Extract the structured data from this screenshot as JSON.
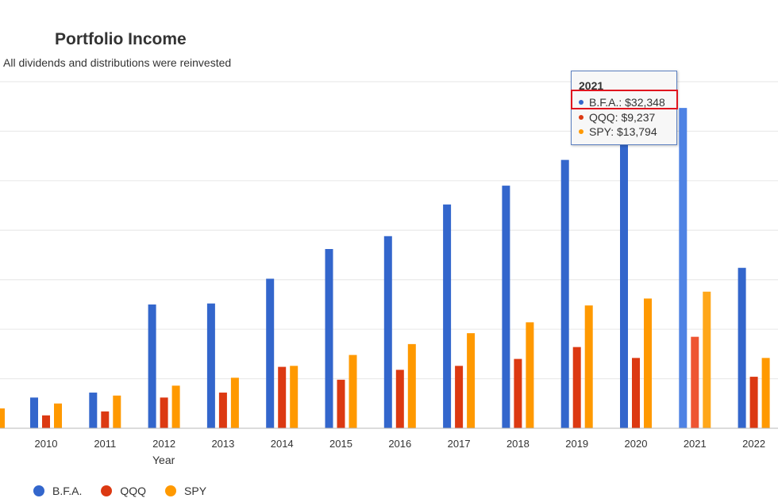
{
  "title": "Portfolio Income",
  "subtitle": "All dividends and distributions were reinvested",
  "chart_data": {
    "type": "bar",
    "title": "Portfolio Income",
    "subtitle": "All dividends and distributions were reinvested",
    "xlabel": "Year",
    "ylabel": "",
    "categories": [
      "2010",
      "2011",
      "2012",
      "2013",
      "2014",
      "2015",
      "2016",
      "2017",
      "2018",
      "2019",
      "2020",
      "2021",
      "2022"
    ],
    "series": [
      {
        "name": "B.F.A.",
        "color": "#3366cc",
        "values": [
          3100,
          3600,
          12500,
          12600,
          15100,
          18100,
          19400,
          22600,
          24500,
          27100,
          29500,
          32348,
          16200
        ]
      },
      {
        "name": "QQQ",
        "color": "#dc3912",
        "values": [
          1300,
          1700,
          3100,
          3600,
          6200,
          4900,
          5900,
          6300,
          7000,
          8200,
          7100,
          9237,
          5200
        ]
      },
      {
        "name": "SPY",
        "color": "#ff9900",
        "values": [
          2500,
          3300,
          4300,
          5100,
          6300,
          7400,
          8500,
          9600,
          10700,
          12400,
          13100,
          13794,
          7100
        ]
      }
    ],
    "ylim": [
      0,
      35000
    ],
    "grid": true,
    "legend": "bottom-left",
    "highlight_category": "2021"
  },
  "tooltip": {
    "title": "2021",
    "rows": [
      {
        "label": "B.F.A.: $32,348",
        "color": "#3366cc"
      },
      {
        "label": "QQQ: $9,237",
        "color": "#dc3912"
      },
      {
        "label": "SPY: $13,794",
        "color": "#ff9900"
      }
    ]
  },
  "legend": [
    {
      "label": "B.F.A.",
      "color": "#3366cc"
    },
    {
      "label": "QQQ",
      "color": "#dc3912"
    },
    {
      "label": "SPY",
      "color": "#ff9900"
    }
  ]
}
